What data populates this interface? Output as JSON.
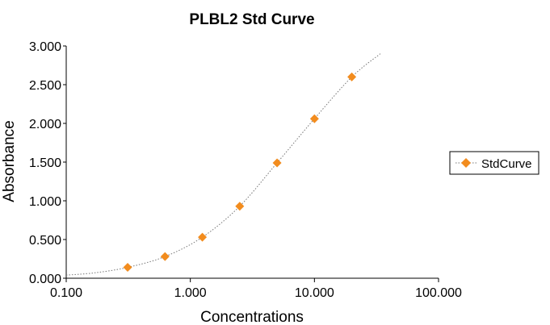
{
  "chart_data": {
    "type": "scatter",
    "title": "PLBL2 Std Curve",
    "xlabel": "Concentrations",
    "ylabel": "Absorbance",
    "x_scale": "log",
    "xlim": [
      0.1,
      100
    ],
    "ylim": [
      0,
      3
    ],
    "x_ticks": [
      "0.100",
      "1.000",
      "10.000",
      "100.000"
    ],
    "y_ticks": [
      "0.000",
      "0.500",
      "1.000",
      "1.500",
      "2.000",
      "2.500",
      "3.000"
    ],
    "grid": false,
    "legend_position": "right",
    "series": [
      {
        "name": "StdCurve",
        "color": "#F28C1E",
        "marker": "diamond",
        "line": "dotted fit curve",
        "x": [
          0.3125,
          0.625,
          1.25,
          2.5,
          5,
          10,
          20
        ],
        "y": [
          0.14,
          0.28,
          0.53,
          0.93,
          1.49,
          2.06,
          2.6
        ]
      }
    ]
  }
}
